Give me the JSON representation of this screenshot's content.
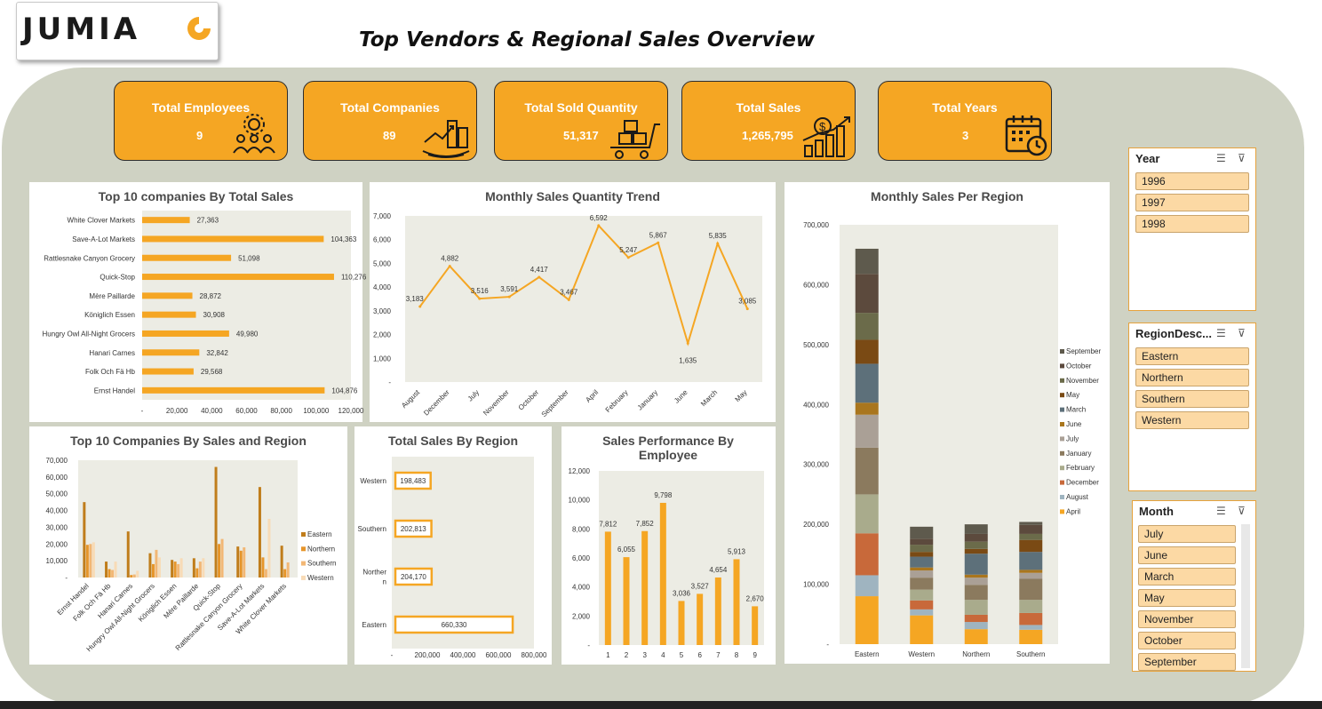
{
  "brand": {
    "name": "JUMIA"
  },
  "title": "Top Vendors & Regional Sales Overview",
  "colors": {
    "accent": "#f5a623",
    "backdrop": "#cfd2c3",
    "plot_bg": "#ecece4"
  },
  "kpis": [
    {
      "label": "Total Employees",
      "value": "9",
      "icon": "team-icon"
    },
    {
      "label": "Total Companies",
      "value": "89",
      "icon": "city-growth-icon"
    },
    {
      "label": "Total Sold Quantity",
      "value": "51,317",
      "icon": "cart-boxes-icon"
    },
    {
      "label": "Total  Sales",
      "value": "1,265,795",
      "icon": "sales-chart-icon"
    },
    {
      "label": "Total Years",
      "value": "3",
      "icon": "calendar-clock-icon"
    }
  ],
  "chart_data": [
    {
      "id": "top10_total_sales",
      "type": "bar",
      "orientation": "horizontal",
      "title": "Top 10 companies By Total Sales",
      "categories": [
        "White Clover Markets",
        "Save-A-Lot Markets",
        "Rattlesnake Canyon Grocery",
        "Quick-Stop",
        "Mère Paillarde",
        "Königlich Essen",
        "Hungry Owl All-Night Grocers",
        "Hanari Carnes",
        "Folk Och Fä Hb",
        "Ernst Handel"
      ],
      "values": [
        27363,
        104363,
        51098,
        110276,
        28872,
        30908,
        49980,
        32842,
        29568,
        104876
      ],
      "data_labels": [
        "27,363",
        "104,363",
        "51,098",
        "110,276",
        "28,872",
        "30,908",
        "49,980",
        "32,842",
        "29,568",
        "104,876"
      ],
      "xlim": [
        0,
        120000
      ],
      "xticks": [
        "-",
        "20,000",
        "40,000",
        "60,000",
        "80,000",
        "100,000",
        "120,000"
      ],
      "color": "#f5a623"
    },
    {
      "id": "monthly_qty_trend",
      "type": "line",
      "title": "Monthly Sales Quantity Trend",
      "categories": [
        "August",
        "December",
        "July",
        "November",
        "October",
        "September",
        "April",
        "February",
        "January",
        "June",
        "March",
        "May"
      ],
      "values": [
        3183,
        4882,
        3516,
        3591,
        4417,
        3467,
        6592,
        5247,
        5867,
        1635,
        5835,
        3085
      ],
      "data_labels": [
        "3,183",
        "4,882",
        "3,516",
        "3,591",
        "4,417",
        "3,467",
        "6,592",
        "5,247",
        "5,867",
        "1,635",
        "5,835",
        "3,085"
      ],
      "ylim": [
        0,
        7000
      ],
      "yticks": [
        "-",
        "1,000",
        "2,000",
        "3,000",
        "4,000",
        "5,000",
        "6,000",
        "7,000"
      ],
      "color": "#f5a623"
    },
    {
      "id": "monthly_sales_region",
      "type": "bar",
      "stacked": true,
      "title": "Monthly Sales Per Region",
      "categories": [
        "Eastern",
        "Western",
        "Northern",
        "Southern"
      ],
      "ylim": [
        0,
        700000
      ],
      "yticks": [
        "-",
        "100,000",
        "200,000",
        "300,000",
        "400,000",
        "500,000",
        "600,000",
        "700,000"
      ],
      "legend_position": "right",
      "series": [
        {
          "name": "April",
          "color": "#f5a623",
          "values": [
            80000,
            48000,
            25000,
            24000
          ]
        },
        {
          "name": "August",
          "color": "#9fb4c0",
          "values": [
            35000,
            10000,
            12000,
            8000
          ]
        },
        {
          "name": "December",
          "color": "#c8693a",
          "values": [
            70000,
            15000,
            12000,
            20000
          ]
        },
        {
          "name": "February",
          "color": "#a9ab8c",
          "values": [
            65000,
            18000,
            25000,
            22000
          ]
        },
        {
          "name": "January",
          "color": "#8b7a5e",
          "values": [
            78000,
            20000,
            25000,
            35000
          ]
        },
        {
          "name": "July",
          "color": "#aaa096",
          "values": [
            55000,
            12000,
            12000,
            10000
          ]
        },
        {
          "name": "June",
          "color": "#a9761e",
          "values": [
            20000,
            5000,
            5000,
            5000
          ]
        },
        {
          "name": "March",
          "color": "#5d707a",
          "values": [
            65000,
            18000,
            35000,
            30000
          ]
        },
        {
          "name": "May",
          "color": "#7a4a14",
          "values": [
            40000,
            8000,
            8000,
            20000
          ]
        },
        {
          "name": "November",
          "color": "#6b6b4a",
          "values": [
            45000,
            12000,
            12000,
            10000
          ]
        },
        {
          "name": "October",
          "color": "#5c4a3d",
          "values": [
            65000,
            10000,
            13000,
            15000
          ]
        },
        {
          "name": "September",
          "color": "#5e5a4d",
          "values": [
            42000,
            20000,
            16000,
            5000
          ]
        }
      ]
    },
    {
      "id": "top10_sales_region",
      "type": "bar",
      "title": "Top 10 Companies By Sales and Region",
      "categories": [
        "Ernst Handel",
        "Folk Och Fä Hb",
        "Hanari Carnes",
        "Hungry Owl All-Night Grocers",
        "Königlich Essen",
        "Mère Paillarde",
        "Quick-Stop",
        "Rattlesnake Canyon Grocery",
        "Save-A-Lot Markets",
        "White Clover Markets"
      ],
      "ylim": [
        0,
        70000
      ],
      "yticks": [
        "-",
        "10,000",
        "20,000",
        "30,000",
        "40,000",
        "50,000",
        "60,000",
        "70,000"
      ],
      "legend_position": "right",
      "series": [
        {
          "name": "Eastern",
          "color": "#c07d1b",
          "values": [
            45000,
            9500,
            27500,
            14500,
            10500,
            11500,
            66000,
            18500,
            54000,
            19000
          ]
        },
        {
          "name": "Northern",
          "color": "#e6952a",
          "values": [
            19500,
            5000,
            1500,
            8000,
            9500,
            5500,
            20000,
            16000,
            12000,
            5000
          ]
        },
        {
          "name": "Southern",
          "color": "#f2b775",
          "values": [
            20000,
            4500,
            1800,
            16500,
            8000,
            9500,
            23000,
            18000,
            5000,
            9000
          ]
        },
        {
          "name": "Western",
          "color": "#f8dbb6",
          "values": [
            21000,
            9500,
            4000,
            12000,
            11500,
            11500,
            0,
            0,
            35000,
            0
          ]
        }
      ]
    },
    {
      "id": "total_sales_region",
      "type": "bar",
      "orientation": "horizontal",
      "title": "Total Sales By Region",
      "categories": [
        "Western",
        "Southern",
        "Northern",
        "Eastern"
      ],
      "category_display": [
        "Western",
        "Southern",
        "Norther\nn",
        "Eastern"
      ],
      "values": [
        198483,
        202813,
        204170,
        660330
      ],
      "data_labels": [
        "198,483",
        "202,813",
        "204,170",
        "660,330"
      ],
      "xlim": [
        0,
        800000
      ],
      "xticks": [
        "-",
        "200,000",
        "400,000",
        "600,000",
        "800,000"
      ],
      "color": "#f5a623"
    },
    {
      "id": "sales_by_employee",
      "type": "bar",
      "title": "Sales Performance By Employee",
      "categories": [
        "1",
        "2",
        "3",
        "4",
        "5",
        "6",
        "7",
        "8",
        "9"
      ],
      "values": [
        7812,
        6055,
        7852,
        9798,
        3036,
        3527,
        4654,
        5913,
        2670
      ],
      "data_labels": [
        "7,812",
        "6,055",
        "7,852",
        "9,798",
        "3,036",
        "3,527",
        "4,654",
        "5,913",
        "2,670"
      ],
      "ylim": [
        0,
        12000
      ],
      "yticks": [
        "-",
        "2,000",
        "4,000",
        "6,000",
        "8,000",
        "10,000",
        "12,000"
      ],
      "color": "#f5a623"
    }
  ],
  "slicers": {
    "year": {
      "title": "Year",
      "items": [
        "1996",
        "1997",
        "1998"
      ]
    },
    "region": {
      "title": "RegionDesc...",
      "items": [
        "Eastern",
        "Northern",
        "Southern",
        "Western"
      ]
    },
    "month": {
      "title": "Month",
      "items": [
        "July",
        "June",
        "March",
        "May",
        "November",
        "October",
        "September"
      ]
    }
  }
}
